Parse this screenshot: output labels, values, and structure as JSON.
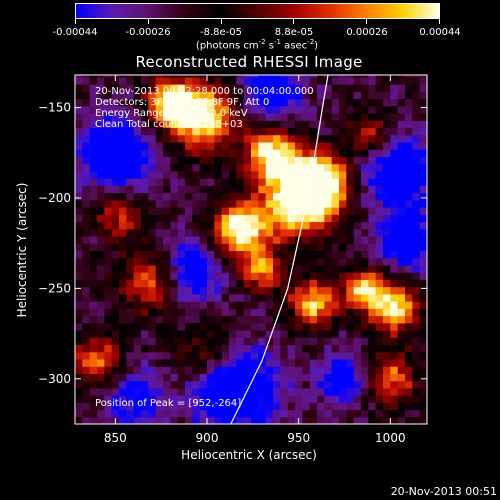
{
  "colorbar": {
    "tick_labels": [
      "-0.00044",
      "-0.00026",
      "-8.8e-05",
      "8.8e-05",
      "0.00026",
      "0.00044"
    ],
    "unit_label": "(photons cm",
    "unit_exp1": "-2",
    "unit_mid": " s",
    "unit_exp2": "-1",
    "unit_mid2": " asec",
    "unit_exp3": "-2",
    "unit_end": ")",
    "colors": [
      "#0000ff",
      "#5a1bb0",
      "#601070",
      "#300010",
      "#000000",
      "#500000",
      "#a00000",
      "#e03000",
      "#ff8000",
      "#ffd000",
      "#ffffe8"
    ]
  },
  "title": "Reconstructed RHESSI Image",
  "info": {
    "line1": "20-Nov-2013 00:02:28.000 to 00:04:00.000",
    "line2": "Detectors: 3F 5F 6F 7F 8F 9F, Att 0",
    "line3": "Energy Range: 25.0 - 50.0 keV",
    "line4": "Clean    Total counts: 5.13E+03"
  },
  "peak_label": "Position of Peak = [952,-264]",
  "footer": "20-Nov-2013 00:51",
  "chart_data": {
    "type": "heatmap",
    "title": "Reconstructed RHESSI Image",
    "xlabel": "Heliocentric X (arcsec)",
    "ylabel": "Heliocentric Y (arcsec)",
    "xlim": [
      828,
      1020
    ],
    "ylim": [
      -325,
      -132
    ],
    "xticks": [
      850,
      900,
      950,
      1000
    ],
    "yticks": [
      -150,
      -200,
      -250,
      -300
    ],
    "xtick_labels": [
      "850",
      "900",
      "950",
      "1000"
    ],
    "ytick_labels": [
      "−150",
      "−200",
      "−250",
      "−300"
    ],
    "colorbar_range": [
      -0.00044,
      0.00044
    ],
    "peak": [
      952,
      -264
    ],
    "limb_curve": [
      [
        913,
        -325
      ],
      [
        930,
        -290
      ],
      [
        944,
        -250
      ],
      [
        955,
        -200
      ],
      [
        963,
        -150
      ],
      [
        966,
        -132
      ]
    ],
    "bright_sources": [
      {
        "x": 951,
        "y": -200,
        "sigma": 14,
        "amp": 0.9
      },
      {
        "x": 962,
        "y": -190,
        "sigma": 10,
        "amp": 0.75
      },
      {
        "x": 918,
        "y": -218,
        "sigma": 11,
        "amp": 0.8
      },
      {
        "x": 898,
        "y": -155,
        "sigma": 13,
        "amp": 0.75
      },
      {
        "x": 880,
        "y": -147,
        "sigma": 9,
        "amp": 0.7
      },
      {
        "x": 958,
        "y": -258,
        "sigma": 9,
        "amp": 0.65
      },
      {
        "x": 1002,
        "y": -260,
        "sigma": 10,
        "amp": 0.7
      },
      {
        "x": 985,
        "y": -250,
        "sigma": 8,
        "amp": 0.6
      },
      {
        "x": 870,
        "y": -245,
        "sigma": 12,
        "amp": 0.55
      },
      {
        "x": 852,
        "y": -210,
        "sigma": 9,
        "amp": 0.4
      },
      {
        "x": 988,
        "y": -165,
        "sigma": 8,
        "amp": 0.45
      },
      {
        "x": 1000,
        "y": -300,
        "sigma": 10,
        "amp": 0.5
      },
      {
        "x": 900,
        "y": -285,
        "sigma": 12,
        "amp": 0.35
      },
      {
        "x": 840,
        "y": -290,
        "sigma": 10,
        "amp": 0.5
      },
      {
        "x": 935,
        "y": -175,
        "sigma": 10,
        "amp": 0.7
      },
      {
        "x": 930,
        "y": -240,
        "sigma": 8,
        "amp": 0.5
      }
    ],
    "dark_regions": [
      {
        "x": 850,
        "y": -175,
        "sigma": 14,
        "amp": 0.55
      },
      {
        "x": 890,
        "y": -240,
        "sigma": 13,
        "amp": 0.5
      },
      {
        "x": 915,
        "y": -305,
        "sigma": 16,
        "amp": 0.6
      },
      {
        "x": 860,
        "y": -310,
        "sigma": 12,
        "amp": 0.35
      },
      {
        "x": 1005,
        "y": -185,
        "sigma": 14,
        "amp": 0.5
      },
      {
        "x": 1010,
        "y": -225,
        "sigma": 12,
        "amp": 0.45
      },
      {
        "x": 935,
        "y": -140,
        "sigma": 12,
        "amp": 0.45
      },
      {
        "x": 975,
        "y": -300,
        "sigma": 10,
        "amp": 0.4
      }
    ]
  }
}
